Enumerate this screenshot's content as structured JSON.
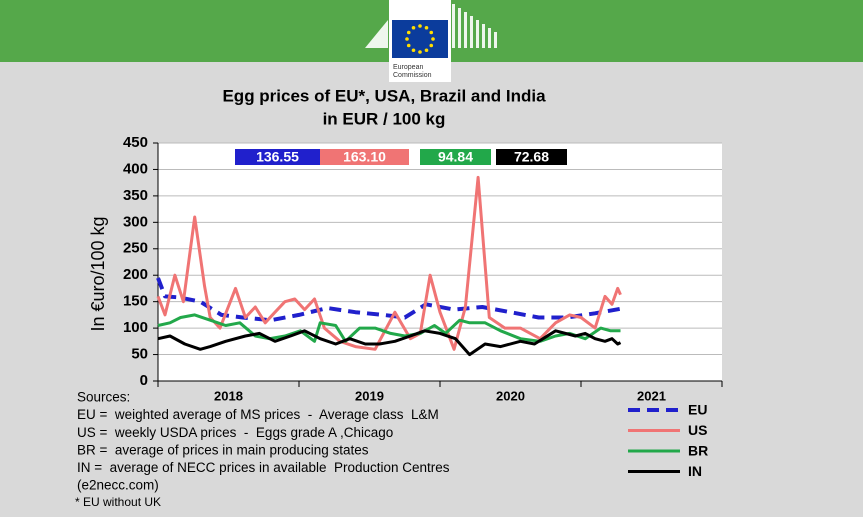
{
  "logo": {
    "line1": "European",
    "line2": "Commission"
  },
  "chart_data": {
    "type": "line",
    "title": "Egg prices of EU*, USA, Brazil and India",
    "subtitle": "in EUR / 100 kg",
    "y_label": "In €uro/100 kg",
    "categories": [
      "2018",
      "2019",
      "2020",
      "2021"
    ],
    "xlim": [
      2018,
      2022
    ],
    "ylim": [
      0,
      450
    ],
    "yticks": [
      0,
      50,
      100,
      150,
      200,
      250,
      300,
      350,
      400,
      450
    ],
    "grid": true,
    "legend": "bottom-right",
    "series": [
      {
        "name": "EU",
        "color": "#2020cc",
        "dashed": true,
        "last_label": "136.55",
        "x": [
          2018.0,
          2018.05,
          2018.15,
          2018.3,
          2018.45,
          2018.6,
          2018.8,
          2019.0,
          2019.2,
          2019.4,
          2019.6,
          2019.75,
          2019.9,
          2020.1,
          2020.3,
          2020.5,
          2020.7,
          2020.9,
          2021.1,
          2021.28
        ],
        "values": [
          195,
          160,
          158,
          150,
          125,
          120,
          115,
          125,
          138,
          130,
          125,
          120,
          145,
          135,
          140,
          130,
          120,
          120,
          128,
          136.55
        ]
      },
      {
        "name": "US",
        "color": "#f07474",
        "dashed": false,
        "last_label": "163.10",
        "x": [
          2018.0,
          2018.05,
          2018.12,
          2018.18,
          2018.26,
          2018.33,
          2018.37,
          2018.44,
          2018.55,
          2018.62,
          2018.69,
          2018.76,
          2018.83,
          2018.9,
          2018.97,
          2019.04,
          2019.11,
          2019.18,
          2019.29,
          2019.4,
          2019.54,
          2019.68,
          2019.79,
          2019.86,
          2019.93,
          2020.0,
          2020.1,
          2020.18,
          2020.27,
          2020.35,
          2020.46,
          2020.57,
          2020.71,
          2020.82,
          2020.92,
          2021.0,
          2021.1,
          2021.17,
          2021.22,
          2021.26,
          2021.28
        ],
        "values": [
          160,
          125,
          200,
          150,
          310,
          180,
          120,
          100,
          175,
          120,
          140,
          110,
          130,
          150,
          155,
          135,
          155,
          100,
          75,
          65,
          60,
          130,
          80,
          90,
          200,
          130,
          60,
          140,
          385,
          120,
          100,
          100,
          80,
          110,
          125,
          120,
          100,
          160,
          145,
          175,
          163.1
        ]
      },
      {
        "name": "BR",
        "color": "#22a84a",
        "dashed": false,
        "last_label": "94.84",
        "x": [
          2018.0,
          2018.085,
          2018.16,
          2018.26,
          2018.37,
          2018.48,
          2018.58,
          2018.69,
          2018.79,
          2018.9,
          2019.01,
          2019.11,
          2019.15,
          2019.26,
          2019.33,
          2019.43,
          2019.54,
          2019.65,
          2019.75,
          2019.86,
          2019.96,
          2020.04,
          2020.14,
          2020.21,
          2020.32,
          2020.43,
          2020.57,
          2020.71,
          2020.82,
          2020.92,
          2021.03,
          2021.14,
          2021.21,
          2021.28
        ],
        "values": [
          105,
          110,
          120,
          125,
          115,
          105,
          110,
          85,
          80,
          85,
          95,
          75,
          110,
          105,
          75,
          100,
          100,
          90,
          85,
          90,
          105,
          90,
          115,
          110,
          110,
          95,
          80,
          75,
          85,
          90,
          80,
          100,
          95,
          94.84
        ]
      },
      {
        "name": "IN",
        "color": "#000000",
        "dashed": false,
        "last_label": "72.68",
        "x": [
          2018.0,
          2018.085,
          2018.19,
          2018.3,
          2018.37,
          2018.48,
          2018.62,
          2018.72,
          2018.83,
          2018.94,
          2019.04,
          2019.15,
          2019.26,
          2019.36,
          2019.47,
          2019.57,
          2019.68,
          2019.79,
          2019.89,
          2020.0,
          2020.11,
          2020.21,
          2020.32,
          2020.43,
          2020.57,
          2020.67,
          2020.82,
          2020.96,
          2021.03,
          2021.1,
          2021.17,
          2021.22,
          2021.26,
          2021.28
        ],
        "values": [
          80,
          85,
          70,
          60,
          65,
          75,
          85,
          90,
          75,
          85,
          95,
          80,
          70,
          80,
          70,
          70,
          75,
          85,
          95,
          90,
          80,
          50,
          70,
          65,
          75,
          70,
          95,
          85,
          90,
          80,
          75,
          80,
          70,
          72.68
        ]
      }
    ],
    "notes": [
      "Sources:",
      "EU =  weighted average of MS prices  -  Average class  L&M",
      "US =  weekly USDA prices  -  Eggs grade A ,Chicago",
      "BR =  average of prices in main producing states",
      "IN =  average of NECC prices in available  Production Centres",
      "(e2necc.com)"
    ],
    "footnote": "* EU without UK"
  }
}
